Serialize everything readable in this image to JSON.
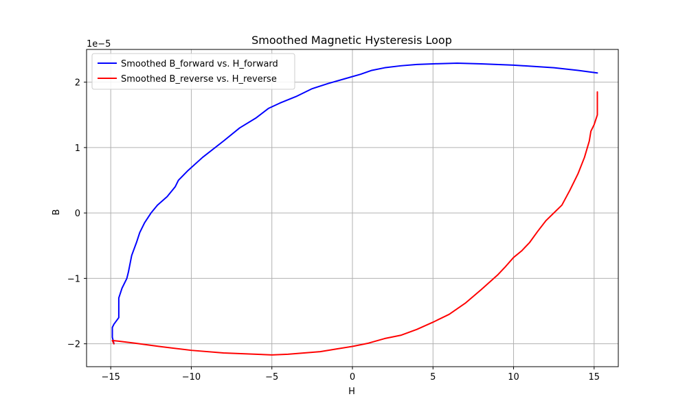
{
  "chart_data": {
    "type": "line",
    "title": "Smoothed Magnetic Hysteresis Loop",
    "xlabel": "H",
    "ylabel": "B",
    "y_offset_label": "1e−5",
    "xlim": [
      -16.5,
      16.5
    ],
    "ylim": [
      -2.35e-05,
      2.5e-05
    ],
    "xticks": [
      -15,
      -10,
      -5,
      0,
      5,
      10,
      15
    ],
    "xtick_labels": [
      "−15",
      "−10",
      "−5",
      "0",
      "5",
      "10",
      "15"
    ],
    "yticks": [
      -2e-05,
      -1e-05,
      0,
      1e-05,
      2e-05
    ],
    "ytick_labels": [
      "−2",
      "−1",
      "0",
      "1",
      "2"
    ],
    "grid": true,
    "legend_position": "upper-left",
    "series": [
      {
        "name": "Smoothed B_forward vs. H_forward",
        "color": "#0000ff",
        "x": [
          -14.8,
          -14.9,
          -14.9,
          -14.8,
          -14.5,
          -14.5,
          -14.3,
          -14.0,
          -13.9,
          -13.7,
          -13.4,
          -13.2,
          -12.9,
          -12.5,
          -12.1,
          -11.5,
          -11.0,
          -10.8,
          -10.2,
          -9.3,
          -8.0,
          -7.0,
          -6.0,
          -5.2,
          -4.5,
          -3.5,
          -2.5,
          -1.5,
          -0.5,
          0.5,
          1.2,
          2.0,
          3.0,
          4.0,
          5.0,
          6.5,
          8.0,
          10.0,
          12.5,
          14.0,
          15.2
        ],
        "y": [
          -2e-05,
          -1.9e-05,
          -1.75e-05,
          -1.7e-05,
          -1.6e-05,
          -1.3e-05,
          -1.15e-05,
          -1e-05,
          -9e-06,
          -6.5e-06,
          -4.5e-06,
          -3e-06,
          -1.5e-06,
          0.0,
          1.2e-06,
          2.5e-06,
          4e-06,
          5e-06,
          6.5e-06,
          8.5e-06,
          1.1e-05,
          1.3e-05,
          1.45e-05,
          1.6e-05,
          1.68e-05,
          1.78e-05,
          1.9e-05,
          1.98e-05,
          2.05e-05,
          2.12e-05,
          2.18e-05,
          2.22e-05,
          2.25e-05,
          2.27e-05,
          2.28e-05,
          2.29e-05,
          2.28e-05,
          2.26e-05,
          2.22e-05,
          2.18e-05,
          2.14e-05
        ]
      },
      {
        "name": "Smoothed B_reverse vs. H_reverse",
        "color": "#ff0000",
        "x": [
          -14.8,
          -14.9,
          -14.5,
          -13.5,
          -12.0,
          -10.0,
          -8.0,
          -6.0,
          -5.0,
          -4.0,
          -3.0,
          -2.0,
          -1.0,
          0.0,
          1.0,
          2.0,
          3.0,
          4.0,
          5.0,
          6.0,
          7.0,
          8.0,
          9.0,
          9.5,
          10.0,
          10.5,
          11.0,
          11.5,
          12.0,
          12.5,
          13.0,
          13.5,
          14.0,
          14.4,
          14.7,
          14.8,
          15.0,
          15.2,
          15.2
        ],
        "y": [
          -2e-05,
          -1.95e-05,
          -1.96e-05,
          -1.99e-05,
          -2.04e-05,
          -2.1e-05,
          -2.14e-05,
          -2.16e-05,
          -2.17e-05,
          -2.16e-05,
          -2.14e-05,
          -2.12e-05,
          -2.08e-05,
          -2.04e-05,
          -1.99e-05,
          -1.92e-05,
          -1.87e-05,
          -1.78e-05,
          -1.67e-05,
          -1.55e-05,
          -1.38e-05,
          -1.17e-05,
          -9.5e-06,
          -8.2e-06,
          -6.8e-06,
          -5.8e-06,
          -4.5e-06,
          -2.8e-06,
          -1.2e-06,
          0.0,
          1.2e-06,
          3.5e-06,
          6e-06,
          8.5e-06,
          1.1e-05,
          1.25e-05,
          1.35e-05,
          1.5e-05,
          1.85e-05
        ]
      }
    ]
  }
}
